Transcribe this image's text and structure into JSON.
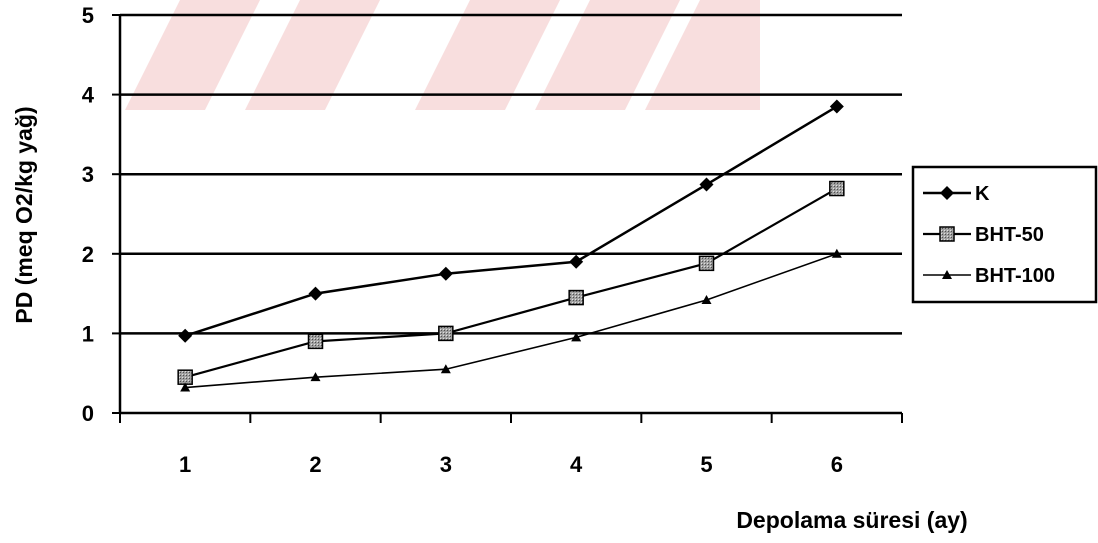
{
  "chart_data": {
    "type": "line",
    "title": "",
    "xlabel": "Depolama süresi (ay)",
    "ylabel": "PD (meq O2/kg yağ)",
    "categories": [
      "1",
      "2",
      "3",
      "4",
      "5",
      "6"
    ],
    "ylim": [
      0,
      5
    ],
    "yticks": [
      "0",
      "1",
      "2",
      "3",
      "4",
      "5"
    ],
    "grid": "horizontal",
    "legend_position": "right",
    "series": [
      {
        "name": "K",
        "marker": "diamond",
        "color": "#000000",
        "values": [
          0.97,
          1.5,
          1.75,
          1.9,
          2.87,
          3.85
        ]
      },
      {
        "name": "BHT-50",
        "marker": "square",
        "color": "#000000",
        "values": [
          0.45,
          0.9,
          1.0,
          1.45,
          1.88,
          2.82
        ]
      },
      {
        "name": "BHT-100",
        "marker": "triangle",
        "color": "#000000",
        "values": [
          0.32,
          0.45,
          0.55,
          0.95,
          1.42,
          2.0
        ]
      }
    ]
  }
}
